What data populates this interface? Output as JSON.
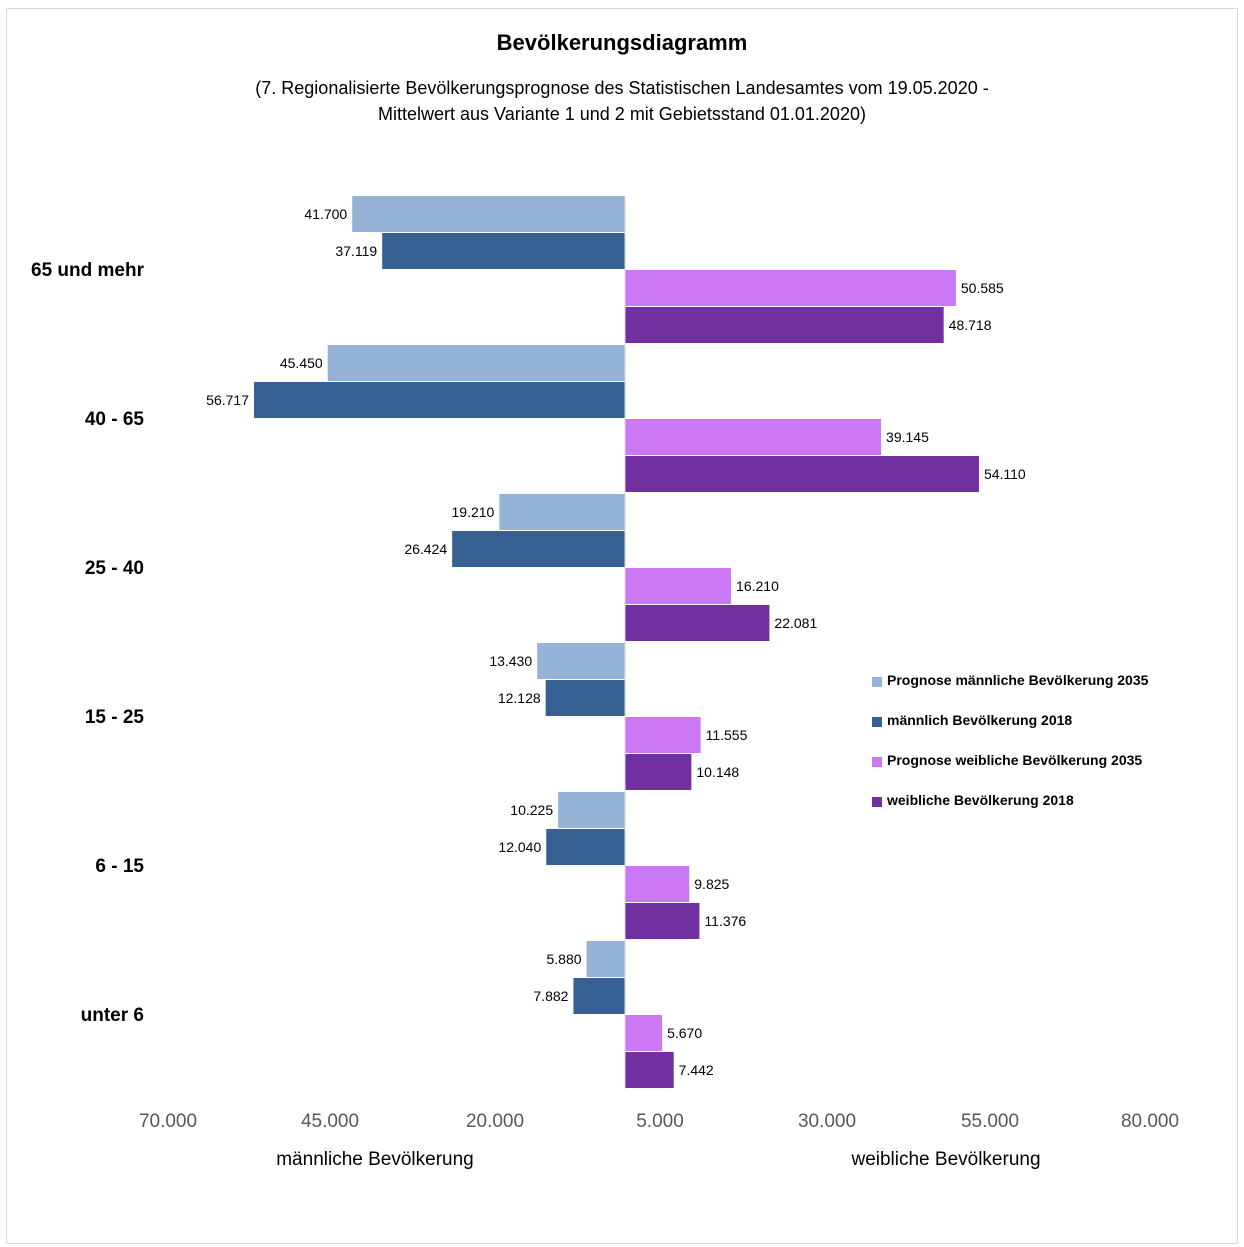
{
  "chart_data": {
    "type": "bar",
    "orientation": "horizontal",
    "layout": "population-pyramid",
    "title": "Bevölkerungsdiagramm",
    "subtitle_lines": [
      "(7. Regionalisierte Bevölkerungsprognose des Statistischen Landesamtes vom 19.05.2020 -",
      "Mittelwert aus Variante 1 und 2 mit Gebietsstand 01.01.2020)"
    ],
    "categories": [
      "65 und mehr",
      "40 - 65",
      "25 - 40",
      "15 - 25",
      "6 - 15",
      "unter 6"
    ],
    "series": [
      {
        "name": "Prognose männliche Bevölkerung 2035",
        "side": "left",
        "color": "#95b3d7",
        "values": [
          41700,
          45450,
          19210,
          13430,
          10225,
          5880
        ],
        "labels": [
          "41.700",
          "45.450",
          "19.210",
          "13.430",
          "10.225",
          "5.880"
        ]
      },
      {
        "name": "männlich Bevölkerung 2018",
        "side": "left",
        "color": "#366092",
        "values": [
          37119,
          56717,
          26424,
          12128,
          12040,
          7882
        ],
        "labels": [
          "37.119",
          "56.717",
          "26.424",
          "12.128",
          "12.040",
          "7.882"
        ]
      },
      {
        "name": "Prognose weibliche Bevölkerung  2035",
        "side": "right",
        "color": "#cc77f4",
        "values": [
          50585,
          39145,
          16210,
          11555,
          9825,
          5670
        ],
        "labels": [
          "50.585",
          "39.145",
          "16.210",
          "11.555",
          "9.825",
          "5.670"
        ]
      },
      {
        "name": "weibliche Bevölkerung 2018",
        "side": "right",
        "color": "#7030a0",
        "values": [
          48718,
          54110,
          22081,
          10148,
          11376,
          7442
        ],
        "labels": [
          "48.718",
          "54.110",
          "22.081",
          "10.148",
          "11.376",
          "7.442"
        ]
      }
    ],
    "x_tick_labels": [
      "70.000",
      "45.000",
      "20.000",
      "5.000",
      "30.000",
      "55.000",
      "80.000"
    ],
    "xlabel_left": "männliche Bevölkerung",
    "xlabel_right": "weibliche Bevölkerung",
    "xlim": [
      -70000,
      80000
    ],
    "legend_position": "right"
  }
}
